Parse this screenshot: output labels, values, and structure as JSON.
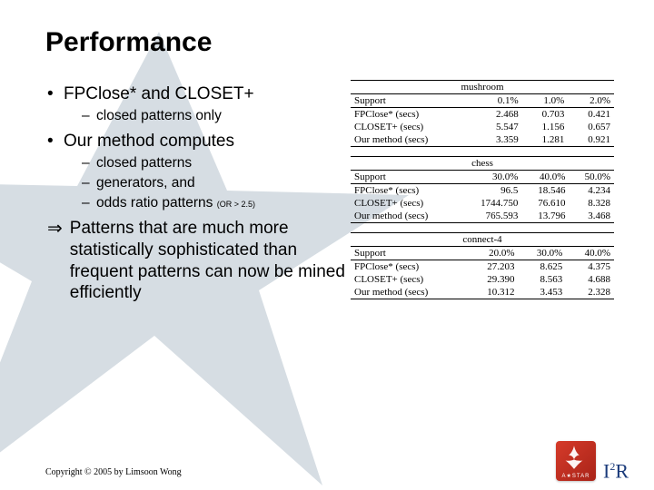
{
  "title": "Performance",
  "bullets": {
    "b1": "FPClose* and CLOSET+",
    "b1s1": "closed patterns only",
    "b2": "Our method computes",
    "b2s1": "closed patterns",
    "b2s2": "generators, and",
    "b2s3": "odds ratio patterns ",
    "b2s3_note": "(OR > 2.5)",
    "arrow": "⇒",
    "conclusion": "Patterns that are much more statistically sophisticated than frequent patterns can now be mined efficiently"
  },
  "tables": [
    {
      "caption": "mushroom",
      "header": [
        "Support",
        "0.1%",
        "1.0%",
        "2.0%"
      ],
      "rows": [
        [
          "FPClose* (secs)",
          "2.468",
          "0.703",
          "0.421"
        ],
        [
          "CLOSET+ (secs)",
          "5.547",
          "1.156",
          "0.657"
        ],
        [
          "Our method (secs)",
          "3.359",
          "1.281",
          "0.921"
        ]
      ]
    },
    {
      "caption": "chess",
      "header": [
        "Support",
        "30.0%",
        "40.0%",
        "50.0%"
      ],
      "rows": [
        [
          "FPClose* (secs)",
          "96.5",
          "18.546",
          "4.234"
        ],
        [
          "CLOSET+ (secs)",
          "1744.750",
          "76.610",
          "8.328"
        ],
        [
          "Our method (secs)",
          "765.593",
          "13.796",
          "3.468"
        ]
      ]
    },
    {
      "caption": "connect-4",
      "header": [
        "Support",
        "20.0%",
        "30.0%",
        "40.0%"
      ],
      "rows": [
        [
          "FPClose* (secs)",
          "27.203",
          "8.625",
          "4.375"
        ],
        [
          "CLOSET+ (secs)",
          "29.390",
          "8.563",
          "4.688"
        ],
        [
          "Our method (secs)",
          "10.312",
          "3.453",
          "2.328"
        ]
      ]
    }
  ],
  "copyright": "Copyright © 2005 by Limsoon Wong",
  "logo": {
    "brand": "A★STAR",
    "right": "I²R"
  },
  "colors": {
    "star_fill": "#d6dde3",
    "accent_red": "#c7362a",
    "i2r_blue": "#1a3a7a"
  }
}
